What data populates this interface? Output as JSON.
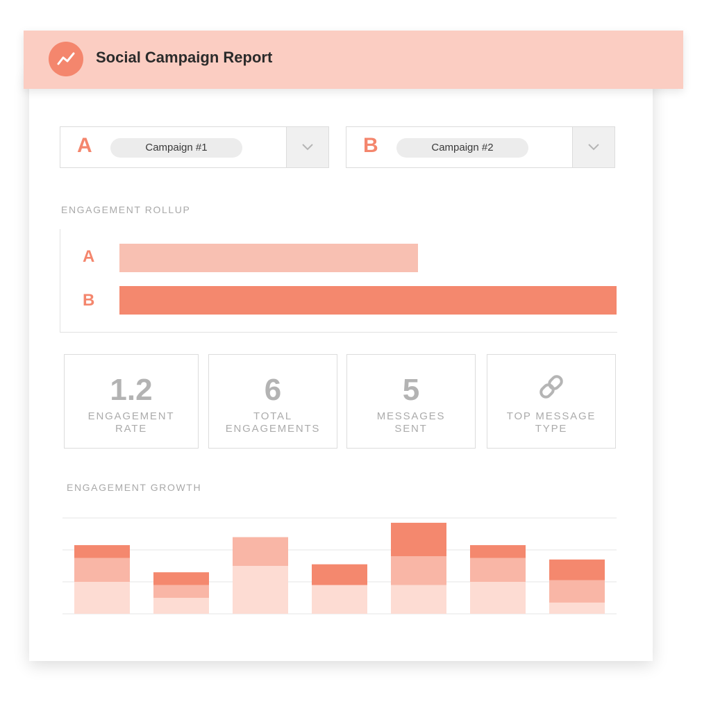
{
  "header": {
    "title": "Social Campaign Report",
    "logo_icon": "trend-line-icon"
  },
  "selectors": [
    {
      "letter": "A",
      "value": "Campaign #1",
      "dropdown_icon": "chevron-down-icon"
    },
    {
      "letter": "B",
      "value": "Campaign #2",
      "dropdown_icon": "chevron-down-icon"
    }
  ],
  "rollup": {
    "title": "ENGAGEMENT ROLLUP",
    "bars": [
      {
        "letter": "A",
        "fraction": 0.6,
        "color": "#f8c0b2"
      },
      {
        "letter": "B",
        "fraction": 1.0,
        "color": "#f4886e"
      }
    ]
  },
  "stats": [
    {
      "value": "1.2",
      "line1": "ENGAGEMENT",
      "line2": "RATE"
    },
    {
      "value": "6",
      "line1": "TOTAL",
      "line2": "ENGAGEMENTS"
    },
    {
      "value": "5",
      "line1": "MESSAGES",
      "line2": "SENT"
    },
    {
      "icon": "link-icon",
      "line1": "TOP MESSAGE",
      "line2": "TYPE"
    }
  ],
  "growth": {
    "title": "ENGAGEMENT GROWTH"
  },
  "chart_data": {
    "type": "bar",
    "stacked": true,
    "categories": [
      "",
      "",
      "",
      "",
      "",
      "",
      ""
    ],
    "series": [
      {
        "values": [
          1.0,
          0.5,
          1.5,
          0.9,
          0.9,
          1.0,
          0.35
        ],
        "color": "#fddcd3"
      },
      {
        "values": [
          0.75,
          0.4,
          0.9,
          0,
          0.9,
          0.75,
          0.7
        ],
        "color": "#f9b6a6"
      },
      {
        "values": [
          0.4,
          0.4,
          0,
          0.65,
          1.05,
          0.4,
          0.65
        ],
        "color": "#f4886e"
      }
    ],
    "ylim": [
      0,
      3
    ],
    "grid": true,
    "legend": "none"
  },
  "colors": {
    "accent": "#f4866d",
    "header_bg": "#fbcdc2",
    "muted_text": "#a9a9a9"
  }
}
